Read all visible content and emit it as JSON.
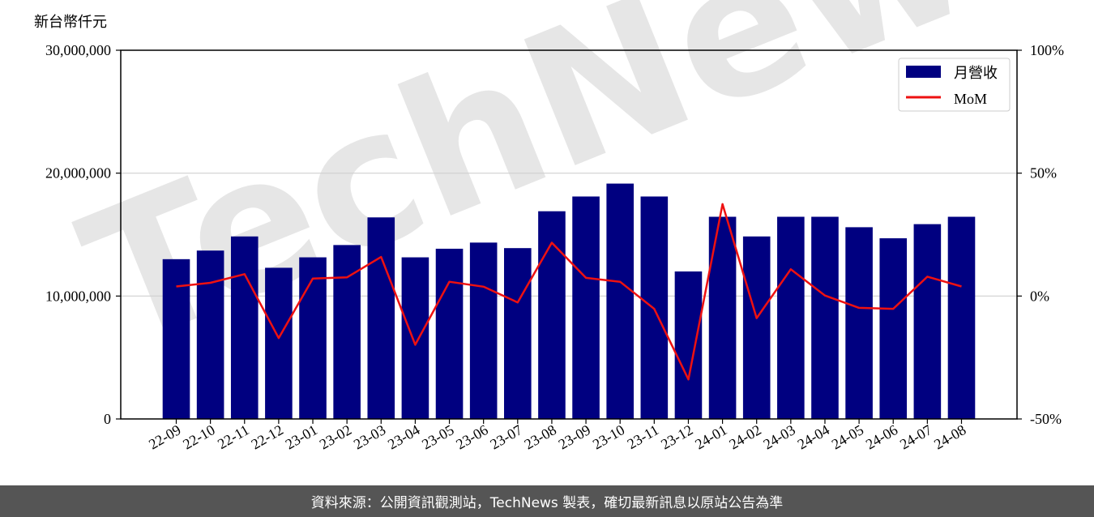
{
  "watermark": {
    "text": "TechNews",
    "accent_text": "News"
  },
  "footer": {
    "text": "資料來源：公開資訊觀測站，TechNews 製表，確切最新訊息以原站公告為準"
  },
  "chart_data": {
    "type": "bar",
    "unit_label": "新台幣仟元",
    "categories": [
      "22-09",
      "22-10",
      "22-11",
      "22-12",
      "23-01",
      "23-02",
      "23-03",
      "23-04",
      "23-05",
      "23-06",
      "23-07",
      "23-08",
      "23-09",
      "23-10",
      "23-11",
      "23-12",
      "24-01",
      "24-02",
      "24-03",
      "24-04",
      "24-05",
      "24-06",
      "24-07",
      "24-08"
    ],
    "series": [
      {
        "name": "月營收",
        "kind": "bar",
        "axis": "left",
        "color": "#000080",
        "values": [
          13000000,
          13700000,
          14850000,
          12300000,
          13150000,
          14150000,
          16400000,
          13150000,
          13850000,
          14350000,
          13900000,
          16900000,
          18100000,
          19150000,
          18100000,
          12000000,
          16450000,
          14850000,
          16450000,
          16450000,
          15600000,
          14700000,
          15850000,
          16450000
        ]
      },
      {
        "name": "MoM",
        "kind": "line",
        "axis": "right",
        "color": "#ee1111",
        "values": [
          3.9,
          5.4,
          8.9,
          -17.1,
          7.1,
          7.6,
          15.9,
          -19.8,
          5.8,
          3.8,
          -2.6,
          21.7,
          7.4,
          5.8,
          -5.2,
          -33.9,
          37.4,
          -9.0,
          10.9,
          0.2,
          -4.8,
          -5.2,
          7.9,
          3.9
        ]
      }
    ],
    "left_axis": {
      "ylim": [
        0,
        30000000
      ],
      "ticks": [
        0,
        10000000,
        20000000,
        30000000
      ],
      "tick_labels": [
        "0",
        "10,000,000",
        "20,000,000",
        "30,000,000"
      ]
    },
    "right_axis": {
      "ylim": [
        -50,
        100
      ],
      "ticks": [
        -50,
        0,
        50,
        100
      ],
      "tick_labels": [
        "-50%",
        "0%",
        "50%",
        "100%"
      ]
    },
    "grid": "horizontal",
    "legend_position": "top-right"
  }
}
